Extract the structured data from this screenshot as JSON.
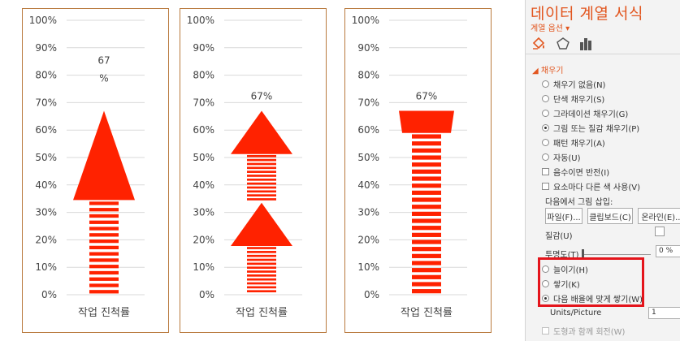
{
  "charts": [
    {
      "name": "stretch",
      "left": 27
    },
    {
      "name": "stack",
      "left": 221
    },
    {
      "name": "stack-scale",
      "left": 424
    }
  ],
  "chart_data": [
    {
      "type": "bar",
      "categories": [
        "작업 진척률"
      ],
      "values": [
        67
      ],
      "data_label": "67\n%",
      "ylim": [
        0,
        100
      ],
      "yticks": [
        "0%",
        "10%",
        "20%",
        "30%",
        "40%",
        "50%",
        "60%",
        "70%",
        "80%",
        "90%",
        "100%"
      ],
      "xlabel": "작업 진척률",
      "fill": "stretch"
    },
    {
      "type": "bar",
      "categories": [
        "작업 진척률"
      ],
      "values": [
        67
      ],
      "data_label": "67%",
      "ylim": [
        0,
        100
      ],
      "yticks": [
        "0%",
        "10%",
        "20%",
        "30%",
        "40%",
        "50%",
        "60%",
        "70%",
        "80%",
        "90%",
        "100%"
      ],
      "xlabel": "작업 진척률",
      "fill": "stack"
    },
    {
      "type": "bar",
      "categories": [
        "작업 진척률"
      ],
      "values": [
        67
      ],
      "data_label": "67%",
      "ylim": [
        0,
        100
      ],
      "yticks": [
        "0%",
        "10%",
        "20%",
        "30%",
        "40%",
        "50%",
        "60%",
        "70%",
        "80%",
        "90%",
        "100%"
      ],
      "xlabel": "작업 진척률",
      "fill": "stack-scale"
    }
  ],
  "colors": {
    "accent": "#e2561f",
    "bar": "#ff2200",
    "frame": "#b97a3e",
    "highlight": "#e4141b"
  },
  "pane": {
    "title": "데이터 계열 서식",
    "subtitle": "계열 옵션 ▾",
    "tabs": [
      "fill-line-icon",
      "effects-icon",
      "series-options-icon"
    ],
    "section": "◢ 채우기",
    "fill_options": [
      {
        "label": "채우기 없음(N)",
        "selected": false
      },
      {
        "label": "단색 채우기(S)",
        "selected": false
      },
      {
        "label": "그라데이션 채우기(G)",
        "selected": false
      },
      {
        "label": "그림 또는 질감 채우기(P)",
        "selected": true
      },
      {
        "label": "패턴 채우기(A)",
        "selected": false
      },
      {
        "label": "자동(U)",
        "selected": false
      }
    ],
    "invert_label": "음수이면 반전(I)",
    "vary_label": "요소마다 다른 색 사용(V)",
    "insert_label": "다음에서 그림 삽입:",
    "file_button": "파일(F)...",
    "clipboard_button": "클립보드(C)",
    "online_button": "온라인(E)...",
    "texture_label": "질감(U)",
    "transparency_label": "투명도(T)",
    "transparency_value": "0 %",
    "stretch_label": "늘이기(H)",
    "stack_label": "쌓기(K)",
    "stack_scale_label": "다음 배율에 맞게 쌓기(W)",
    "units_label": "Units/Picture",
    "units_value": "1",
    "rotate_label": "도형과 함께 회전(W)"
  }
}
